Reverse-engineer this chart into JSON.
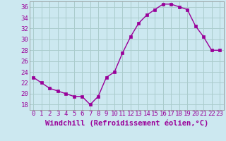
{
  "x": [
    0,
    1,
    2,
    3,
    4,
    5,
    6,
    7,
    8,
    9,
    10,
    11,
    12,
    13,
    14,
    15,
    16,
    17,
    18,
    19,
    20,
    21,
    22,
    23
  ],
  "y": [
    23,
    22,
    21,
    20.5,
    20,
    19.5,
    19.5,
    18,
    19.5,
    23,
    24,
    27.5,
    30.5,
    33,
    34.5,
    35.5,
    36.5,
    36.5,
    36,
    35.5,
    32.5,
    30.5,
    28,
    28
  ],
  "line_color": "#990099",
  "marker": "s",
  "marker_size": 2.5,
  "xlabel": "Windchill (Refroidissement éolien,°C)",
  "ylim": [
    17,
    37
  ],
  "xlim": [
    -0.5,
    23.5
  ],
  "yticks": [
    18,
    20,
    22,
    24,
    26,
    28,
    30,
    32,
    34,
    36
  ],
  "xticks": [
    0,
    1,
    2,
    3,
    4,
    5,
    6,
    7,
    8,
    9,
    10,
    11,
    12,
    13,
    14,
    15,
    16,
    17,
    18,
    19,
    20,
    21,
    22,
    23
  ],
  "bg_color": "#cce8f0",
  "grid_color": "#aacccc",
  "tick_label_fontsize": 6.5,
  "xlabel_fontsize": 7.5,
  "linewidth": 1.0
}
